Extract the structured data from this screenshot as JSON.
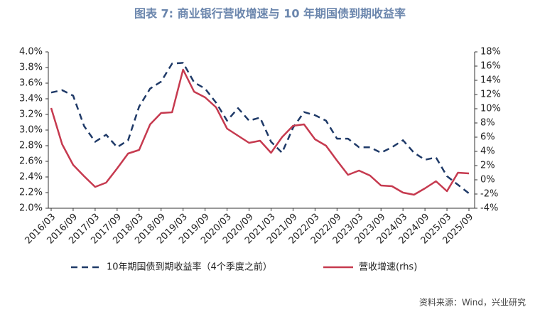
{
  "chart_data": {
    "type": "line",
    "title": "图表 7:  商业银行营收增速与 10 年期国债到期收益率",
    "source": "资料来源：Wind，兴业研究",
    "categories": [
      "2016/03",
      null,
      "2016/09",
      null,
      "2017/03",
      null,
      "2017/09",
      null,
      "2018/03",
      null,
      "2018/09",
      null,
      "2019/03",
      null,
      "2019/09",
      null,
      "2020/03",
      null,
      "2020/09",
      null,
      "2021/03",
      null,
      "2021/09",
      null,
      "2022/03",
      null,
      "2022/09",
      null,
      "2023/03",
      null,
      "2023/09",
      null,
      "2024/03",
      null,
      "2024/09",
      null,
      "2025/03",
      null,
      "2025/09"
    ],
    "series": [
      {
        "name": "10年期国债到期收益率（4个季度之前）",
        "color": "#1f3a68",
        "dash": true,
        "axis": "y",
        "values": [
          3.48,
          3.51,
          3.44,
          3.05,
          2.85,
          2.94,
          2.78,
          2.87,
          3.3,
          3.53,
          3.62,
          3.85,
          3.86,
          3.61,
          3.53,
          3.35,
          3.12,
          3.28,
          3.12,
          3.16,
          2.85,
          2.71,
          3.03,
          3.23,
          3.19,
          3.12,
          2.89,
          2.89,
          2.78,
          2.78,
          2.71,
          2.78,
          2.87,
          2.71,
          2.62,
          2.65,
          2.41,
          2.3,
          2.19
        ]
      },
      {
        "name": "营收增速(rhs)",
        "color": "#c63a4f",
        "dash": false,
        "axis": "y2",
        "values": [
          10.1,
          5.0,
          2.1,
          0.5,
          -1.0,
          -0.4,
          1.6,
          3.7,
          4.2,
          7.8,
          9.4,
          9.5,
          15.5,
          12.4,
          11.6,
          10.2,
          7.2,
          6.2,
          5.2,
          5.5,
          3.8,
          6.0,
          7.6,
          7.8,
          5.7,
          4.8,
          2.7,
          0.7,
          1.3,
          0.6,
          -0.8,
          -0.9,
          -1.8,
          -2.1,
          -1.2,
          -0.2,
          -1.6,
          1.0,
          0.9
        ]
      }
    ],
    "ylim": [
      2.0,
      4.0
    ],
    "yticks": [
      {
        "value": 2.0,
        "label": "2.0%"
      },
      {
        "value": 2.2,
        "label": "2.2%"
      },
      {
        "value": 2.4,
        "label": "2.4%"
      },
      {
        "value": 2.6,
        "label": "2.6%"
      },
      {
        "value": 2.8,
        "label": "2.8%"
      },
      {
        "value": 3.0,
        "label": "3.0%"
      },
      {
        "value": 3.2,
        "label": "3.2%"
      },
      {
        "value": 3.4,
        "label": "3.4%"
      },
      {
        "value": 3.6,
        "label": "3.6%"
      },
      {
        "value": 3.8,
        "label": "3.8%"
      },
      {
        "value": 4.0,
        "label": "4.0%"
      }
    ],
    "y2lim": [
      -4,
      18
    ],
    "y2ticks": [
      {
        "value": -4,
        "label": "-4%"
      },
      {
        "value": -2,
        "label": "-2%"
      },
      {
        "value": 0,
        "label": "0%"
      },
      {
        "value": 2,
        "label": "2%"
      },
      {
        "value": 4,
        "label": "4%"
      },
      {
        "value": 6,
        "label": "6%"
      },
      {
        "value": 8,
        "label": "8%"
      },
      {
        "value": 10,
        "label": "10%"
      },
      {
        "value": 12,
        "label": "12%"
      },
      {
        "value": 14,
        "label": "14%"
      },
      {
        "value": 16,
        "label": "16%"
      },
      {
        "value": 18,
        "label": "18%"
      }
    ],
    "grid": false
  }
}
